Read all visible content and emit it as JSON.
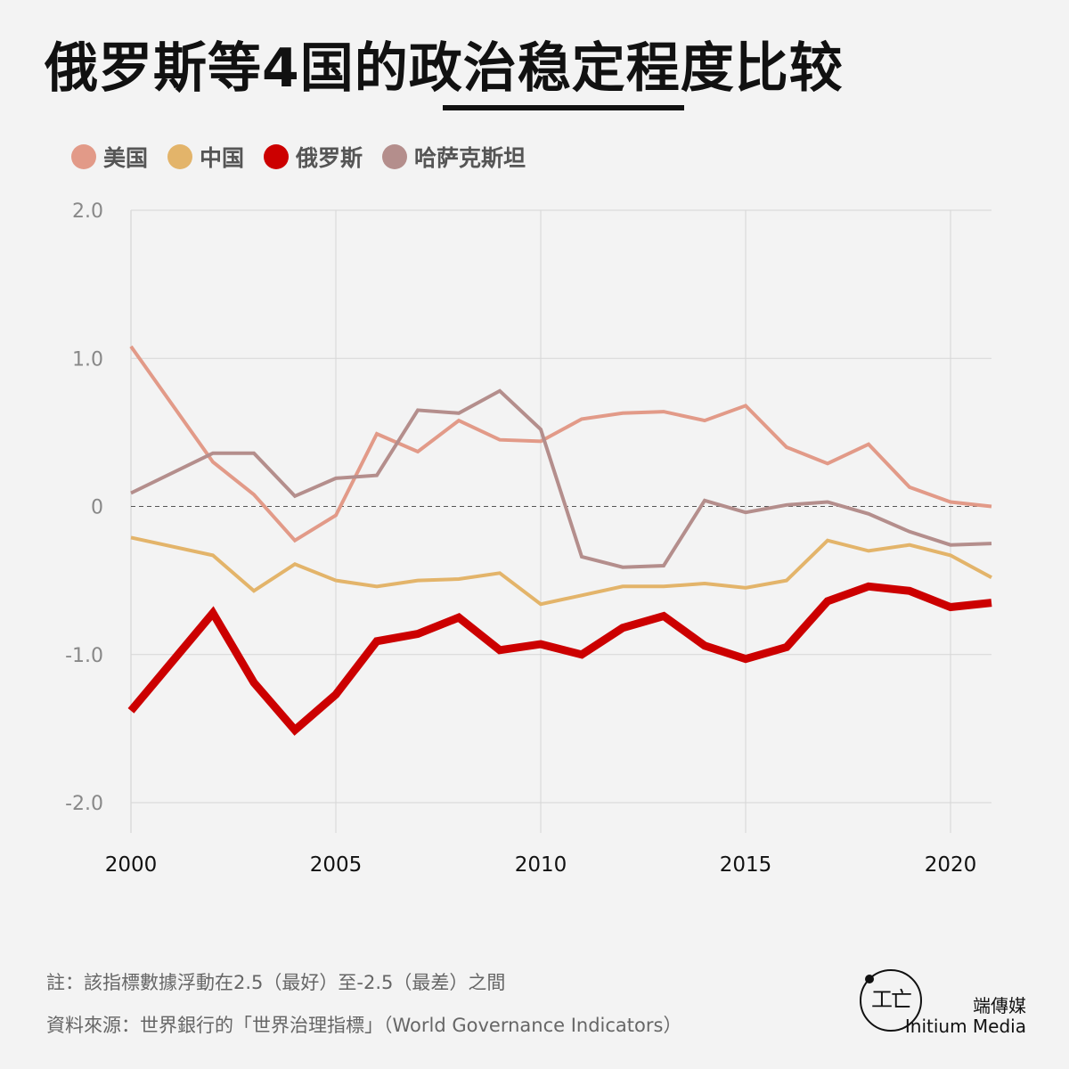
{
  "header": {
    "title": "俄罗斯等4国的政治稳定程度比较"
  },
  "legend": [
    {
      "label": "美国",
      "color": "#e29a88"
    },
    {
      "label": "中国",
      "color": "#e3b46a"
    },
    {
      "label": "俄罗斯",
      "color": "#cc0000"
    },
    {
      "label": "哈萨克斯坦",
      "color": "#b48e8c"
    }
  ],
  "chart_data": {
    "type": "line",
    "title": "",
    "xlabel": "",
    "ylabel": "",
    "x": [
      2000,
      2002,
      2003,
      2004,
      2005,
      2006,
      2007,
      2008,
      2009,
      2010,
      2011,
      2012,
      2013,
      2014,
      2015,
      2016,
      2017,
      2018,
      2019,
      2020,
      2021
    ],
    "xlim": [
      2000,
      2021
    ],
    "ylim": [
      -2.2,
      2.0
    ],
    "x_ticks": [
      2000,
      2005,
      2010,
      2015,
      2020
    ],
    "y_ticks": [
      2.0,
      1.0,
      0,
      -1.0,
      -2.0
    ],
    "y_tick_labels": [
      "2.0",
      "1.0",
      "0",
      "-1.0",
      "-2.0"
    ],
    "zero_line": "dashed",
    "grid": true,
    "series": [
      {
        "name": "美国",
        "color": "#e29a88",
        "width": 4,
        "values": [
          1.08,
          0.3,
          0.08,
          -0.23,
          -0.06,
          0.49,
          0.37,
          0.58,
          0.45,
          0.44,
          0.59,
          0.63,
          0.64,
          0.58,
          0.68,
          0.4,
          0.29,
          0.42,
          0.13,
          0.03,
          0.0
        ]
      },
      {
        "name": "中国",
        "color": "#e3b46a",
        "width": 4,
        "values": [
          -0.21,
          -0.33,
          -0.57,
          -0.39,
          -0.5,
          -0.54,
          -0.5,
          -0.49,
          -0.45,
          -0.66,
          -0.6,
          -0.54,
          -0.54,
          -0.52,
          -0.55,
          -0.5,
          -0.23,
          -0.3,
          -0.26,
          -0.33,
          -0.48
        ]
      },
      {
        "name": "俄罗斯",
        "color": "#cc0000",
        "width": 9,
        "values": [
          -1.38,
          -0.72,
          -1.19,
          -1.51,
          -1.27,
          -0.91,
          -0.86,
          -0.75,
          -0.97,
          -0.93,
          -1.0,
          -0.82,
          -0.74,
          -0.94,
          -1.03,
          -0.95,
          -0.64,
          -0.54,
          -0.57,
          -0.68,
          -0.65
        ]
      },
      {
        "name": "哈萨克斯坦",
        "color": "#b48e8c",
        "width": 4,
        "values": [
          0.09,
          0.36,
          0.36,
          0.07,
          0.19,
          0.21,
          0.65,
          0.63,
          0.78,
          0.52,
          -0.34,
          -0.41,
          -0.4,
          0.04,
          -0.04,
          0.01,
          0.03,
          -0.05,
          -0.17,
          -0.26,
          -0.25
        ]
      }
    ]
  },
  "footer": {
    "note": "註：該指標數據浮動在2.5（最好）至-2.5（最差）之間",
    "source": "資料來源：世界銀行的「世界治理指標」（World Governance Indicators）",
    "brand_cn": "端傳媒",
    "brand_en": "Initium Media"
  }
}
